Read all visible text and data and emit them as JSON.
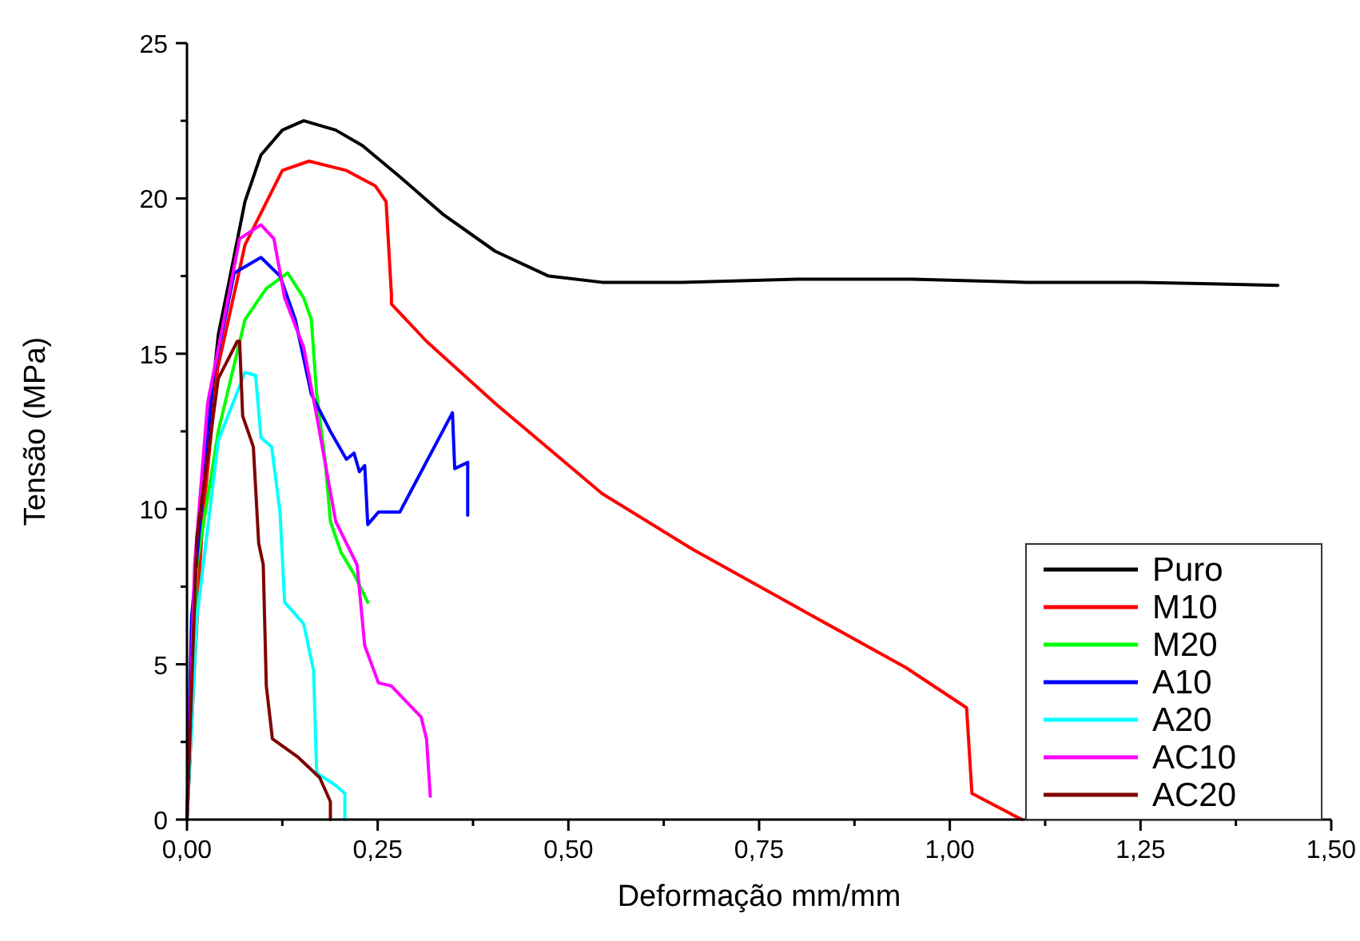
{
  "chart_data": {
    "type": "line",
    "xlabel": "Deformação mm/mm",
    "ylabel": "Tensão (MPa)",
    "xlim": [
      0,
      1.5
    ],
    "ylim": [
      0,
      25
    ],
    "xticks": [
      {
        "value": 0,
        "label": "0,00"
      },
      {
        "value": 0.125,
        "label": null
      },
      {
        "value": 0.25,
        "label": "0,25"
      },
      {
        "value": 0.375,
        "label": null
      },
      {
        "value": 0.5,
        "label": "0,50"
      },
      {
        "value": 0.625,
        "label": null
      },
      {
        "value": 0.75,
        "label": "0,75"
      },
      {
        "value": 0.875,
        "label": null
      },
      {
        "value": 1,
        "label": "1,00"
      },
      {
        "value": 1.125,
        "label": null
      },
      {
        "value": 1.25,
        "label": "1,25"
      },
      {
        "value": 1.375,
        "label": null
      },
      {
        "value": 1.5,
        "label": "1,50"
      }
    ],
    "yticks": [
      0,
      {
        "value": 2.5,
        "label": null
      },
      5,
      {
        "value": 7.5,
        "label": null
      },
      10,
      {
        "value": 12.5,
        "label": null
      },
      15,
      {
        "value": 17.5,
        "label": null
      },
      20,
      {
        "value": 22.5,
        "label": null
      },
      25
    ],
    "grid": false,
    "legend": "bottom right",
    "line_style": "solid",
    "series": [
      {
        "name": "Puro",
        "color": "#000000",
        "x": [
          0,
          0.01,
          0.02,
          0.03,
          0.041,
          0.055,
          0.076,
          0.097,
          0.125,
          0.153,
          0.195,
          0.23,
          0.279,
          0.335,
          0.404,
          0.474,
          0.544,
          0.65,
          0.8,
          0.95,
          1.1,
          1.25,
          1.43
        ],
        "values": [
          0,
          5.5,
          10,
          13,
          15.6,
          17.3,
          19.9,
          21.4,
          22.2,
          22.5,
          22.2,
          21.7,
          20.7,
          19.5,
          18.3,
          17.5,
          17.3,
          17.3,
          17.4,
          17.4,
          17.3,
          17.3,
          17.2
        ]
      },
      {
        "name": "M10",
        "color": "#ff0000",
        "x": [
          0,
          0.01,
          0.02,
          0.04,
          0.076,
          0.125,
          0.16,
          0.209,
          0.247,
          0.261,
          0.268,
          0.268,
          0.314,
          0.404,
          0.544,
          0.663,
          0.802,
          0.942,
          1.022,
          1.029,
          1.089,
          1.095
        ],
        "values": [
          0,
          5,
          9.5,
          14.5,
          18.5,
          20.9,
          21.2,
          20.9,
          20.4,
          19.9,
          16.9,
          16.6,
          15.4,
          13.4,
          10.5,
          8.7,
          6.8,
          4.9,
          3.6,
          0.84,
          0.07,
          0
        ]
      },
      {
        "name": "M20",
        "color": "#00ff00",
        "x": [
          0,
          0.013,
          0.041,
          0.076,
          0.104,
          0.132,
          0.153,
          0.163,
          0.17,
          0.181,
          0.188,
          0.202,
          0.219,
          0.237
        ],
        "values": [
          0,
          8.2,
          12.5,
          16.1,
          17.1,
          17.6,
          16.8,
          16.1,
          13.7,
          11.6,
          9.6,
          8.6,
          7.9,
          7.0
        ]
      },
      {
        "name": "A10",
        "color": "#0000ff",
        "x": [
          0,
          0.006,
          0.034,
          0.062,
          0.097,
          0.122,
          0.142,
          0.163,
          0.188,
          0.209,
          0.219,
          0.226,
          0.233,
          0.237,
          0.251,
          0.279,
          0.348,
          0.351,
          0.368,
          0.368
        ],
        "values": [
          0,
          6.5,
          14.2,
          17.6,
          18.1,
          17.5,
          16.1,
          13.7,
          12.5,
          11.6,
          11.8,
          11.2,
          11.4,
          9.5,
          9.9,
          9.9,
          13.1,
          11.3,
          11.5,
          9.8
        ]
      },
      {
        "name": "A20",
        "color": "#00ffff",
        "x": [
          0,
          0.013,
          0.041,
          0.076,
          0.09,
          0.097,
          0.111,
          0.122,
          0.128,
          0.153,
          0.166,
          0.17,
          0.195,
          0.207,
          0.207
        ],
        "values": [
          0,
          6.5,
          12.2,
          14.4,
          14.3,
          12.3,
          12.0,
          9.9,
          7.0,
          6.3,
          4.8,
          1.5,
          1.1,
          0.84,
          0
        ]
      },
      {
        "name": "AC10",
        "color": "#ff00ff",
        "x": [
          0,
          0.01,
          0.027,
          0.069,
          0.097,
          0.114,
          0.128,
          0.153,
          0.17,
          0.195,
          0.223,
          0.233,
          0.251,
          0.268,
          0.307,
          0.314,
          0.319
        ],
        "values": [
          0,
          8.2,
          13.4,
          18.7,
          19.15,
          18.7,
          16.8,
          15.2,
          13.0,
          9.6,
          8.2,
          5.6,
          4.4,
          4.3,
          3.3,
          2.6,
          0.75
        ]
      },
      {
        "name": "AC20",
        "color": "#800000",
        "x": [
          0,
          0.013,
          0.041,
          0.066,
          0.069,
          0.073,
          0.087,
          0.094,
          0.1,
          0.104,
          0.112,
          0.146,
          0.174,
          0.188,
          0.188
        ],
        "values": [
          0,
          9.1,
          14.2,
          15.4,
          15.4,
          13.0,
          12.0,
          8.9,
          8.2,
          4.3,
          2.6,
          2.0,
          1.35,
          0.58,
          0
        ]
      }
    ]
  }
}
